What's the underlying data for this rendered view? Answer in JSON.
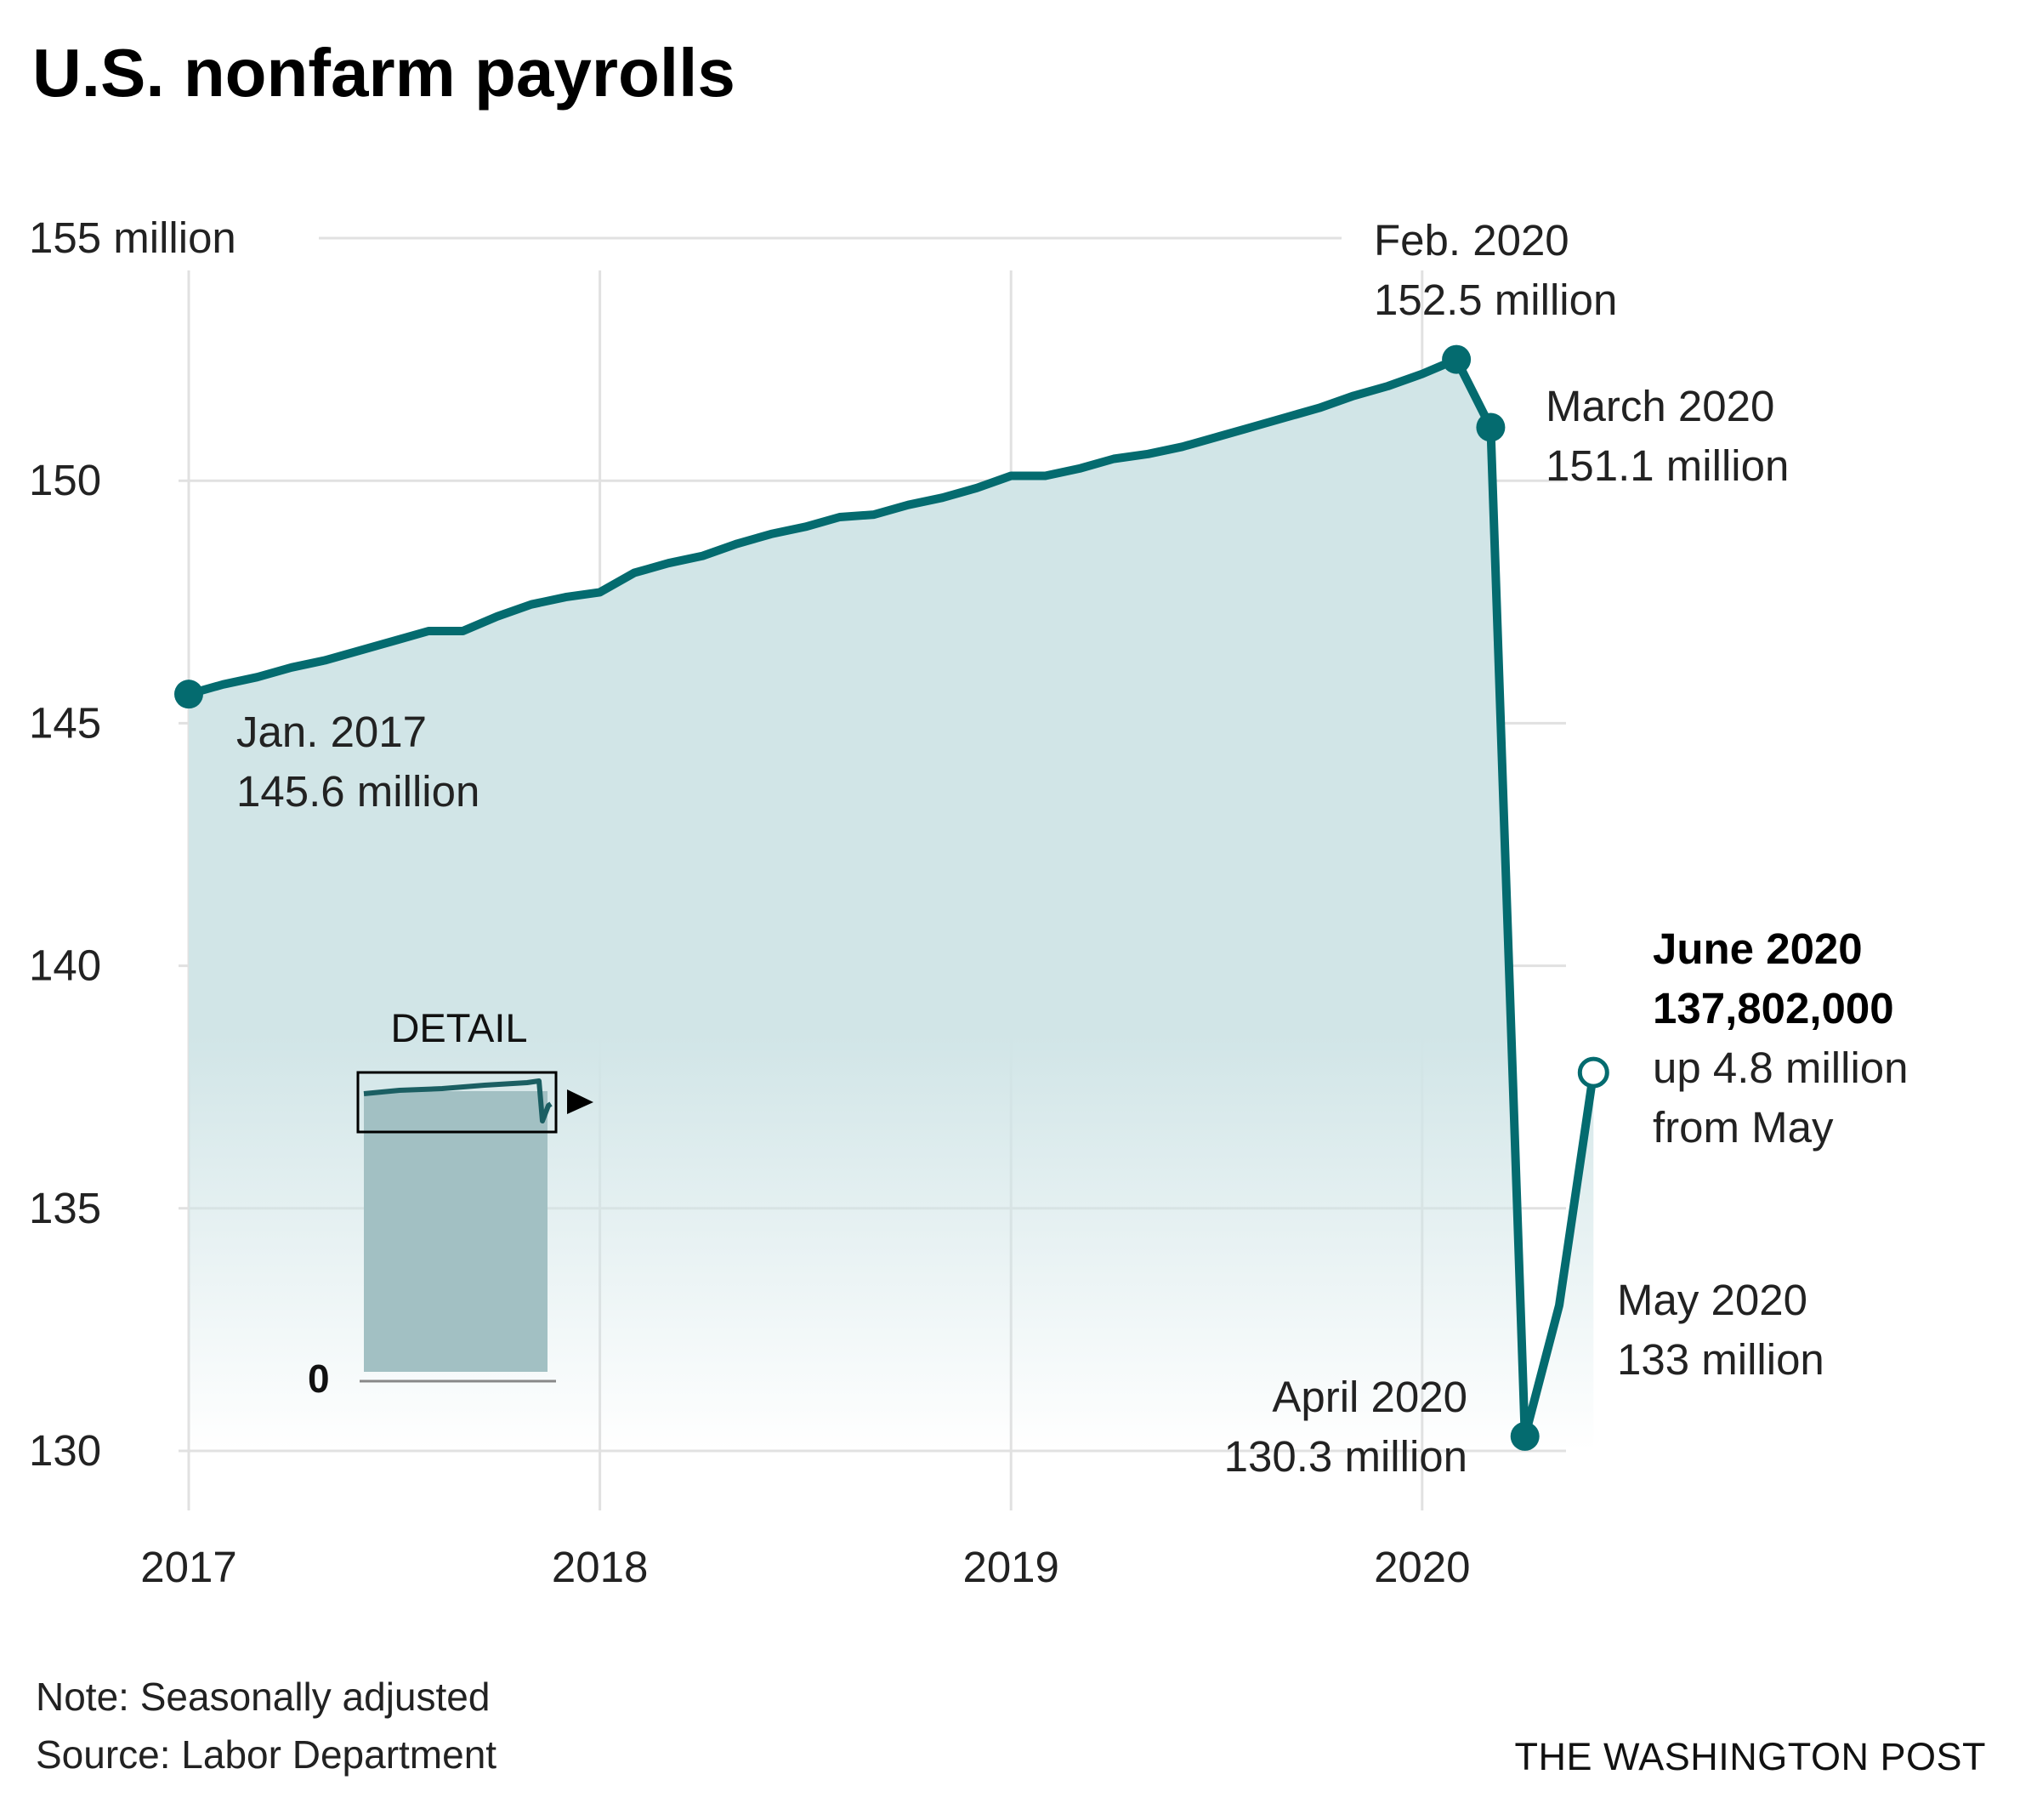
{
  "title": "U.S. nonfarm payrolls",
  "chart_data": {
    "type": "area",
    "title": "U.S. nonfarm payrolls",
    "unit": "million",
    "xlabel": "",
    "ylabel": "",
    "ylim": [
      130,
      155
    ],
    "y_ticks": [
      {
        "value": 155,
        "label": "155 million"
      },
      {
        "value": 150,
        "label": "150"
      },
      {
        "value": 145,
        "label": "145"
      },
      {
        "value": 140,
        "label": "140"
      },
      {
        "value": 135,
        "label": "135"
      },
      {
        "value": 130,
        "label": "130"
      }
    ],
    "x_ticks": [
      {
        "value": "2017-01",
        "label": "2017"
      },
      {
        "value": "2018-01",
        "label": "2018"
      },
      {
        "value": "2019-01",
        "label": "2019"
      },
      {
        "value": "2020-01",
        "label": "2020"
      }
    ],
    "grid": true,
    "line_color": "#046b6f",
    "fill_color": "#d1e5e7",
    "series": [
      {
        "x": [
          "2017-01",
          "2017-02",
          "2017-03",
          "2017-04",
          "2017-05",
          "2017-06",
          "2017-07",
          "2017-08",
          "2017-09",
          "2017-10",
          "2017-11",
          "2017-12",
          "2018-01",
          "2018-02",
          "2018-03",
          "2018-04",
          "2018-05",
          "2018-06",
          "2018-07",
          "2018-08",
          "2018-09",
          "2018-10",
          "2018-11",
          "2018-12",
          "2019-01",
          "2019-02",
          "2019-03",
          "2019-04",
          "2019-05",
          "2019-06",
          "2019-07",
          "2019-08",
          "2019-09",
          "2019-10",
          "2019-11",
          "2019-12",
          "2020-01",
          "2020-02",
          "2020-03",
          "2020-04",
          "2020-05",
          "2020-06"
        ],
        "values": [
          145.6,
          145.8,
          145.95,
          146.15,
          146.3,
          146.5,
          146.7,
          146.9,
          146.9,
          147.2,
          147.45,
          147.6,
          147.7,
          148.1,
          148.3,
          148.45,
          148.7,
          148.9,
          149.05,
          149.25,
          149.3,
          149.5,
          149.65,
          149.85,
          150.1,
          150.1,
          150.25,
          150.45,
          150.55,
          150.7,
          150.9,
          151.1,
          151.3,
          151.5,
          151.75,
          151.95,
          152.2,
          152.5,
          151.1,
          130.3,
          133.0,
          137.8
        ]
      }
    ],
    "annotations": [
      {
        "x": "2017-01",
        "y": 145.6,
        "lines": [
          "Jan. 2017",
          "145.6 million"
        ],
        "marker": "filled"
      },
      {
        "x": "2020-02",
        "y": 152.5,
        "lines": [
          "Feb. 2020",
          "152.5 million"
        ],
        "marker": "filled"
      },
      {
        "x": "2020-03",
        "y": 151.1,
        "lines": [
          "March 2020",
          "151.1 million"
        ],
        "marker": "filled"
      },
      {
        "x": "2020-04",
        "y": 130.3,
        "lines": [
          "April 2020",
          "130.3 million"
        ],
        "marker": "filled"
      },
      {
        "x": "2020-05",
        "y": 133.0,
        "lines": [
          "May 2020",
          "133 million"
        ],
        "marker": "none"
      },
      {
        "x": "2020-06",
        "y": 137.8,
        "lines": [
          "June 2020",
          "137,802,000",
          "up 4.8 million",
          "from May"
        ],
        "bold_lines": 2,
        "marker": "open"
      }
    ],
    "inset": {
      "label": "DETAIL",
      "zero_label": "0",
      "fill_color": "#a2c0c3"
    }
  },
  "footer": {
    "note": "Note: Seasonally adjusted",
    "source": "Source: Labor Department",
    "credit": "THE WASHINGTON POST"
  }
}
